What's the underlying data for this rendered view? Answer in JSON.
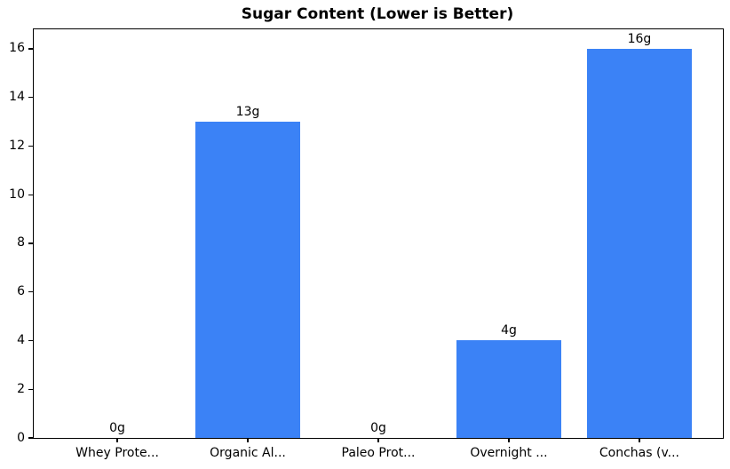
{
  "chart_data": {
    "type": "bar",
    "title": "Sugar Content (Lower is Better)",
    "categories": [
      "Whey Prote...",
      "Organic Al...",
      "Paleo Prot...",
      "Overnight ...",
      "Conchas (v..."
    ],
    "values": [
      0,
      13,
      0,
      4,
      16
    ],
    "value_labels": [
      "0g",
      "13g",
      "0g",
      "4g",
      "16g"
    ],
    "xlabel": "",
    "ylabel": "",
    "yticks": [
      0,
      2,
      4,
      6,
      8,
      10,
      12,
      14,
      16
    ],
    "ylim": [
      0,
      16.8
    ],
    "xlim": [
      -0.64,
      4.64
    ],
    "bar_width": 0.8,
    "bar_color": "#3b82f6",
    "grid": false,
    "legend": null,
    "frame_color": "#000000",
    "background_color": "#ffffff"
  }
}
